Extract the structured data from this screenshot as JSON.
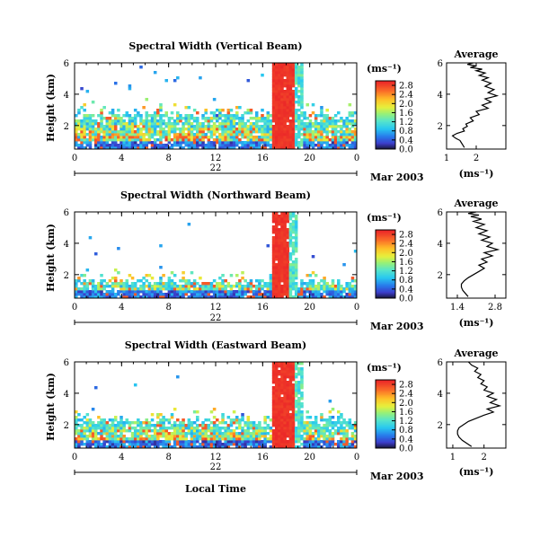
{
  "figure": {
    "xlabel": "Local Time",
    "date_label": "Mar 2003",
    "day_label": "22",
    "ylabel": "Height (km)",
    "unit_label": "(ms⁻¹)",
    "average_title": "Average"
  },
  "chart_data": [
    {
      "type": "heatmap",
      "title": "Spectral Width (Vertical Beam)",
      "x_ticks": [
        "0",
        "4",
        "8",
        "12",
        "16",
        "20",
        "0"
      ],
      "xlim_hours": [
        0,
        24
      ],
      "y_ticks": [
        "2",
        "4",
        "6"
      ],
      "ylim_km": [
        0.5,
        6
      ],
      "colorbar_ticks": [
        "0.0",
        "0.4",
        "0.8",
        "1.2",
        "1.6",
        "2.0",
        "2.4",
        "2.8"
      ],
      "colorbar_range": [
        0.0,
        3.0
      ]
    },
    {
      "type": "heatmap",
      "title": "Spectral Width (Northward Beam)",
      "x_ticks": [
        "0",
        "4",
        "8",
        "12",
        "16",
        "20",
        "0"
      ],
      "xlim_hours": [
        0,
        24
      ],
      "y_ticks": [
        "2",
        "4",
        "6"
      ],
      "ylim_km": [
        0.5,
        6
      ],
      "colorbar_ticks": [
        "0.0",
        "0.4",
        "0.8",
        "1.2",
        "1.6",
        "2.0",
        "2.4",
        "2.8"
      ],
      "colorbar_range": [
        0.0,
        3.0
      ]
    },
    {
      "type": "heatmap",
      "title": "Spectral Width (Eastward Beam)",
      "x_ticks": [
        "0",
        "4",
        "8",
        "12",
        "16",
        "20",
        "0"
      ],
      "xlim_hours": [
        0,
        24
      ],
      "y_ticks": [
        "2",
        "4",
        "6"
      ],
      "ylim_km": [
        0.5,
        6
      ],
      "colorbar_ticks": [
        "0.0",
        "0.4",
        "0.8",
        "1.2",
        "1.6",
        "2.0",
        "2.4",
        "2.8"
      ],
      "colorbar_range": [
        0.0,
        3.0
      ]
    },
    {
      "type": "line",
      "title": "Average",
      "xlabel": "(ms⁻¹)",
      "x_ticks": [
        "1",
        "2"
      ],
      "xlim": [
        1,
        3
      ],
      "y_ticks": [
        "2",
        "4",
        "6"
      ],
      "ylim": [
        0.5,
        6
      ],
      "x": [
        1.6,
        1.55,
        1.5,
        1.45,
        1.3,
        1.2,
        1.35,
        1.6,
        1.55,
        1.7,
        1.65,
        1.9,
        1.8,
        2.1,
        2.0,
        2.4,
        2.2,
        2.5,
        2.3,
        2.7,
        2.4,
        2.6,
        2.3,
        2.5,
        2.2,
        2.4,
        2.1,
        2.3,
        2.0,
        2.2,
        1.8,
        2.0,
        1.7,
        1.9
      ],
      "y": [
        0.6,
        0.75,
        0.9,
        1.05,
        1.2,
        1.35,
        1.5,
        1.65,
        1.8,
        1.95,
        2.1,
        2.3,
        2.5,
        2.7,
        2.9,
        3.1,
        3.3,
        3.5,
        3.7,
        3.9,
        4.1,
        4.3,
        4.5,
        4.7,
        4.9,
        5.05,
        5.2,
        5.35,
        5.5,
        5.6,
        5.7,
        5.8,
        5.9,
        6.0
      ]
    },
    {
      "type": "line",
      "title": "Average",
      "xlabel": "(ms⁻¹)",
      "x_ticks": [
        "1.4",
        "2.8"
      ],
      "xlim": [
        1.0,
        3.2
      ],
      "y_ticks": [
        "2",
        "4",
        "6"
      ],
      "ylim": [
        0.5,
        6
      ],
      "x": [
        1.8,
        1.7,
        1.6,
        1.55,
        1.55,
        1.65,
        1.8,
        2.0,
        2.2,
        2.4,
        2.2,
        2.5,
        2.3,
        2.7,
        2.4,
        2.9,
        2.5,
        2.7,
        2.3,
        2.6,
        2.2,
        2.5,
        2.1,
        2.4,
        2.0,
        2.3,
        1.9,
        2.2,
        1.8,
        2.1
      ],
      "y": [
        0.6,
        0.8,
        1.0,
        1.2,
        1.4,
        1.6,
        1.8,
        2.0,
        2.2,
        2.4,
        2.6,
        2.8,
        3.0,
        3.2,
        3.4,
        3.6,
        3.8,
        4.0,
        4.2,
        4.4,
        4.6,
        4.8,
        5.0,
        5.2,
        5.4,
        5.55,
        5.7,
        5.8,
        5.9,
        6.0
      ]
    },
    {
      "type": "line",
      "title": "Average",
      "xlabel": "(ms⁻¹)",
      "x_ticks": [
        "1",
        "2"
      ],
      "xlim": [
        0.8,
        2.7
      ],
      "y_ticks": [
        "2",
        "4",
        "6"
      ],
      "ylim": [
        0.5,
        6
      ],
      "x": [
        1.6,
        1.45,
        1.3,
        1.2,
        1.15,
        1.15,
        1.2,
        1.35,
        1.5,
        1.75,
        2.0,
        2.3,
        2.1,
        2.5,
        2.2,
        2.4,
        2.1,
        2.3,
        2.0,
        2.1,
        1.9,
        2.0,
        1.8,
        1.9,
        1.7,
        1.8,
        1.6,
        1.5
      ],
      "y": [
        0.6,
        0.8,
        1.0,
        1.2,
        1.4,
        1.6,
        1.8,
        2.0,
        2.2,
        2.4,
        2.6,
        2.8,
        3.0,
        3.2,
        3.4,
        3.6,
        3.8,
        4.0,
        4.2,
        4.4,
        4.6,
        4.8,
        5.0,
        5.2,
        5.4,
        5.6,
        5.8,
        6.0
      ]
    }
  ]
}
